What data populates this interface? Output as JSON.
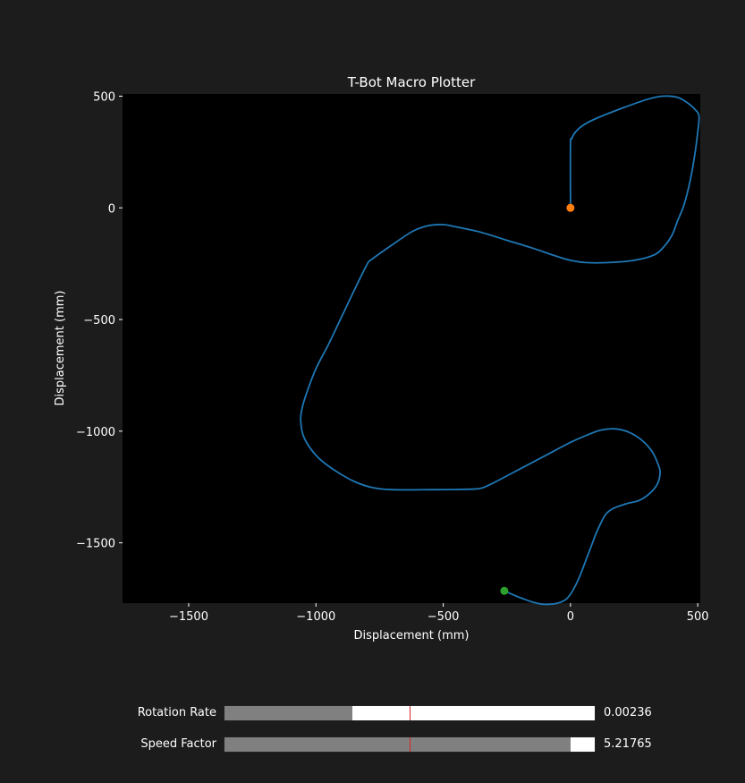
{
  "chart_data": {
    "type": "line",
    "title": "T-Bot Macro Plotter",
    "xlabel": "Displacement (mm)",
    "ylabel": "Displacement (mm)",
    "xlim": [
      -1760,
      510
    ],
    "ylim": [
      -1770,
      510
    ],
    "xticks": [
      -1500,
      -1000,
      -500,
      0,
      500
    ],
    "yticks": [
      500,
      0,
      -500,
      -1000,
      -1500
    ],
    "grid": false,
    "background": "#000000",
    "series": [
      {
        "color": "#1f77b4",
        "x": [
          0,
          0,
          5,
          20,
          50,
          100,
          200,
          300,
          360,
          420,
          460,
          490,
          505,
          500,
          490,
          470,
          445,
          420,
          400,
          370,
          330,
          250,
          150,
          60,
          0,
          -60,
          -150,
          -250,
          -350,
          -450,
          -500,
          -560,
          -620,
          -700,
          -780,
          -800,
          -850,
          -900,
          -950,
          -1000,
          -1040,
          -1055,
          -1060,
          -1050,
          -1020,
          -980,
          -920,
          -850,
          -780,
          -700,
          -550,
          -400,
          -350,
          -300,
          -200,
          -100,
          0,
          60,
          120,
          180,
          230,
          280,
          320,
          345,
          352,
          340,
          310,
          270,
          220,
          170,
          140,
          120,
          100,
          80,
          60,
          40,
          20,
          0,
          -20,
          -50,
          -80,
          -110,
          -140,
          -170,
          -210,
          -260
        ],
        "y": [
          0,
          280,
          310,
          340,
          370,
          400,
          445,
          485,
          500,
          495,
          470,
          440,
          410,
          340,
          250,
          120,
          10,
          -60,
          -120,
          -170,
          -210,
          -235,
          -245,
          -245,
          -235,
          -215,
          -180,
          -145,
          -110,
          -85,
          -75,
          -80,
          -105,
          -165,
          -230,
          -255,
          -370,
          -490,
          -610,
          -720,
          -840,
          -900,
          -950,
          -1020,
          -1080,
          -1130,
          -1180,
          -1225,
          -1252,
          -1262,
          -1262,
          -1260,
          -1255,
          -1230,
          -1170,
          -1110,
          -1050,
          -1020,
          -995,
          -990,
          -1005,
          -1040,
          -1090,
          -1150,
          -1190,
          -1240,
          -1280,
          -1310,
          -1325,
          -1345,
          -1370,
          -1410,
          -1460,
          -1520,
          -1580,
          -1640,
          -1690,
          -1730,
          -1755,
          -1770,
          -1775,
          -1775,
          -1768,
          -1757,
          -1740,
          -1715
        ]
      }
    ],
    "markers": [
      {
        "x": 0,
        "y": 0,
        "color": "#ff7f0e"
      },
      {
        "x": -260,
        "y": -1715,
        "color": "#2ca02c"
      }
    ]
  },
  "sliders": [
    {
      "label": "Rotation Rate",
      "value_text": "0.00236",
      "fill_fraction": 0.345,
      "init_fraction": 0.5
    },
    {
      "label": "Speed Factor",
      "value_text": "5.21765",
      "fill_fraction": 0.935,
      "init_fraction": 0.5
    }
  ]
}
